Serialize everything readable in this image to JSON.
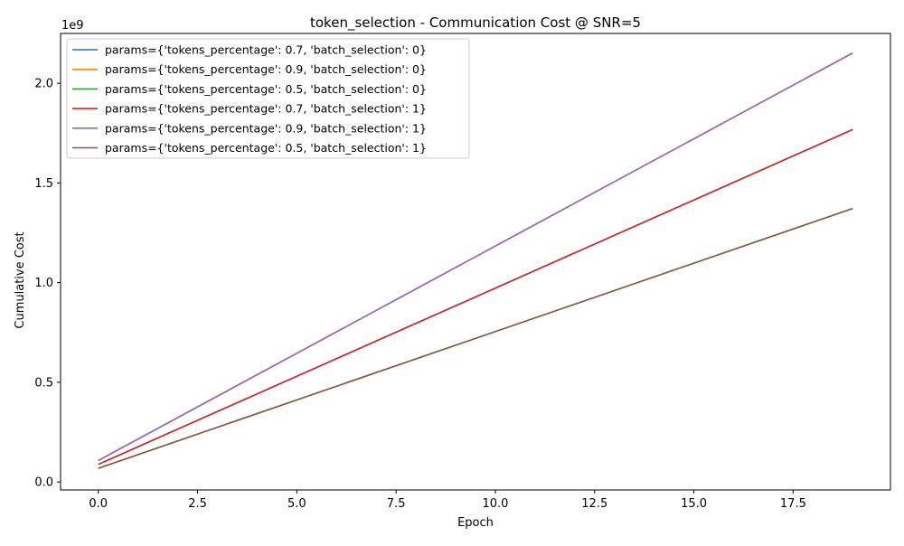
{
  "chart_data": {
    "type": "line",
    "title": "token_selection - Communication Cost @ SNR=5",
    "xlabel": "Epoch",
    "ylabel": "Cumulative Cost",
    "y_offset_label": "1e9",
    "xlim": [
      -0.95,
      19.95
    ],
    "ylim": [
      -0.04,
      2.25
    ],
    "y_unit_multiplier": 1000000000,
    "x_ticks": [
      0,
      2.5,
      5,
      7.5,
      10,
      12.5,
      15,
      17.5
    ],
    "x_tick_labels": [
      "0.0",
      "2.5",
      "5.0",
      "7.5",
      "10.0",
      "12.5",
      "15.0",
      "17.5"
    ],
    "y_ticks": [
      0,
      0.5,
      1.0,
      1.5,
      2.0
    ],
    "y_tick_labels": [
      "0.0",
      "0.5",
      "1.0",
      "1.5",
      "2.0"
    ],
    "grid": false,
    "legend_position": "top-left",
    "series": [
      {
        "name": "params={'tokens_percentage': 0.7, 'batch_selection': 0}",
        "color": "#1f77b4",
        "x": [
          0,
          19
        ],
        "y": [
          0.0884,
          1.768
        ]
      },
      {
        "name": "params={'tokens_percentage': 0.9, 'batch_selection': 0}",
        "color": "#ff7f0e",
        "x": [
          0,
          19
        ],
        "y": [
          0.1076,
          2.152
        ]
      },
      {
        "name": "params={'tokens_percentage': 0.5, 'batch_selection': 0}",
        "color": "#2ca02c",
        "x": [
          0,
          19
        ],
        "y": [
          0.0686,
          1.372
        ]
      },
      {
        "name": "params={'tokens_percentage': 0.7, 'batch_selection': 1}",
        "color": "#d62728",
        "x": [
          0,
          19
        ],
        "y": [
          0.0884,
          1.768
        ]
      },
      {
        "name": "params={'tokens_percentage': 0.9, 'batch_selection': 1}",
        "color": "#9467bd",
        "x": [
          0,
          19
        ],
        "y": [
          0.1076,
          2.152
        ]
      },
      {
        "name": "params={'tokens_percentage': 0.5, 'batch_selection': 1}",
        "color": "#8c564b",
        "x": [
          0,
          19
        ],
        "y": [
          0.0686,
          1.372
        ]
      }
    ]
  }
}
